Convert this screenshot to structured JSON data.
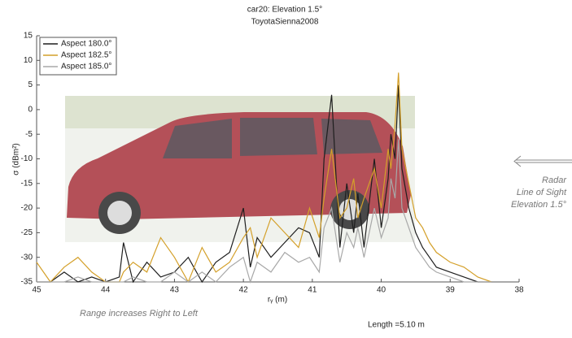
{
  "chart_data": {
    "type": "line",
    "title": "car20:  Elevation 1.5°",
    "subtitle": "ToyotaSienna2008",
    "y_label": "σ (dBm²)",
    "x_label": "rᵧ (m)",
    "annotations": [
      "Radar",
      "Line of Sight",
      "Elevation 1.5°",
      "Range increases Right to Left",
      "Length =5.10 m"
    ],
    "legend": "upper left",
    "xlim": [
      45,
      38
    ],
    "xticks": [
      45,
      44,
      43,
      42,
      41,
      40,
      39,
      38
    ],
    "ylim": [
      -35,
      15
    ],
    "yticks": [
      -35,
      -30,
      -25,
      -20,
      -15,
      -10,
      -5,
      0,
      5,
      10,
      15
    ],
    "x": [
      45.0,
      44.8,
      44.6,
      44.4,
      44.2,
      44.0,
      43.8,
      43.74,
      43.6,
      43.4,
      43.2,
      43.0,
      42.8,
      42.6,
      42.4,
      42.2,
      42.0,
      41.9,
      41.8,
      41.6,
      41.4,
      41.2,
      41.04,
      40.9,
      40.83,
      40.72,
      40.6,
      40.5,
      40.4,
      40.34,
      40.25,
      40.1,
      40.0,
      39.9,
      39.86,
      39.8,
      39.75,
      39.7,
      39.6,
      39.5,
      39.4,
      39.3,
      39.2,
      39.0,
      38.8,
      38.6,
      38.4
    ],
    "series": [
      {
        "name": "Aspect 180.0°",
        "color": "#1e1e1e",
        "values": [
          -35,
          -35,
          -33,
          -35,
          -34,
          -35,
          -34,
          -27,
          -35,
          -31,
          -34,
          -33,
          -30,
          -35,
          -31,
          -29,
          -20,
          -32,
          -26,
          -30,
          -27,
          -24,
          -25,
          -30,
          -10,
          3,
          -28,
          -15,
          -25,
          -17,
          -28,
          -10,
          -24,
          -14,
          -5,
          -10,
          5,
          -12,
          -20,
          -25,
          -28,
          -30,
          -32,
          -33,
          -34,
          -35,
          -35
        ]
      },
      {
        "name": "Aspect 182.5°",
        "color": "#d4a02a",
        "values": [
          -31,
          -35,
          -32,
          -30,
          -33,
          -35,
          -35,
          -33,
          -31,
          -33,
          -26,
          -30,
          -35,
          -28,
          -33,
          -31,
          -26,
          -24,
          -30,
          -22,
          -25,
          -28,
          -20,
          -26,
          -18,
          -8,
          -22,
          -20,
          -14,
          -22,
          -18,
          -12,
          -20,
          -8,
          -12,
          -3,
          7.5,
          -8,
          -15,
          -22,
          -24,
          -27,
          -29,
          -31,
          -32,
          -34,
          -35
        ]
      },
      {
        "name": "Aspect 185.0°",
        "color": "#a8a8a8",
        "values": [
          -35,
          -35,
          -35,
          -34,
          -35,
          -35,
          -35,
          -35,
          -34,
          -35,
          -35,
          -33,
          -35,
          -33,
          -35,
          -32,
          -30,
          -35,
          -31,
          -33,
          -29,
          -31,
          -30,
          -33,
          -24,
          -20,
          -31,
          -25,
          -28,
          -24,
          -30,
          -20,
          -26,
          -22,
          -14,
          -18,
          -6,
          -20,
          -24,
          -28,
          -30,
          -32,
          -33,
          -34,
          -35,
          -35,
          -35
        ]
      }
    ]
  }
}
